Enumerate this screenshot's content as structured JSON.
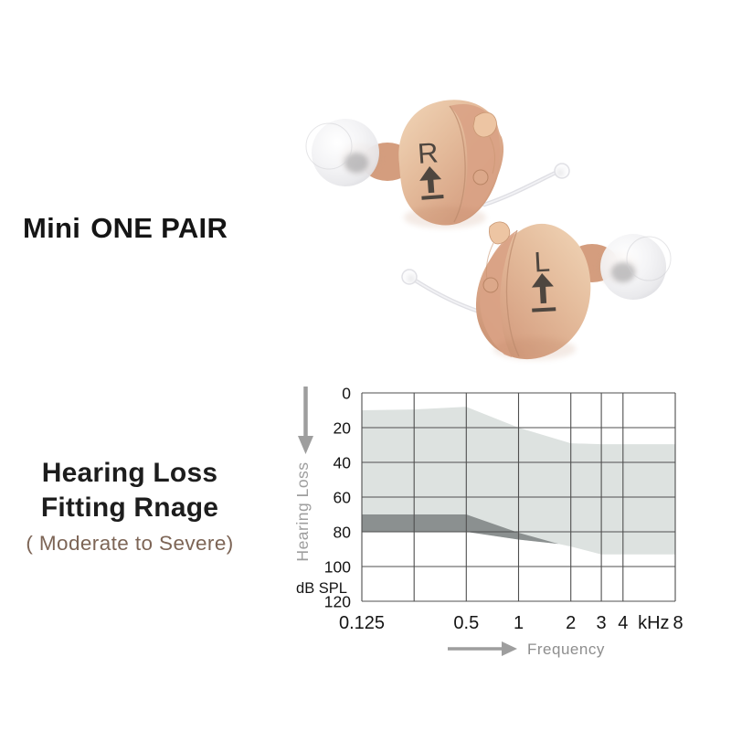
{
  "product": {
    "title_bold": "Mini",
    "title_rest": "ONE PAIR",
    "right_aid_label": "R",
    "left_aid_label": "L",
    "body_color": "#d7a284",
    "body_light": "#eccfb0",
    "marking_color": "#4e463f"
  },
  "fitting": {
    "line1": "Hearing Loss",
    "line2": "Fitting Rnage",
    "subtitle": "( Moderate to Severe)",
    "subtitle_color": "#7d6556"
  },
  "chart_data": {
    "type": "area",
    "title": "Hearing Loss Fitting Range",
    "x_axis": {
      "label": "Frequency",
      "scale": "log",
      "range": [
        0.125,
        8
      ],
      "gridlines": [
        0.125,
        0.25,
        0.5,
        1,
        2,
        3,
        4,
        8
      ],
      "tick_labels": [
        {
          "f": 0.125,
          "label": "0.125"
        },
        {
          "f": 0.5,
          "label": "0.5"
        },
        {
          "f": 1,
          "label": "1"
        },
        {
          "f": 2,
          "label": "2"
        },
        {
          "f": 3,
          "label": "3"
        },
        {
          "f": 4,
          "label": "4"
        },
        {
          "f": 6.0,
          "label": "kHz"
        },
        {
          "f": 8.3,
          "label": "8"
        }
      ]
    },
    "y_axis": {
      "label": "Hearing Loss",
      "unit": "dB SPL",
      "range": [
        0,
        120
      ],
      "ticks": [
        0,
        20,
        40,
        60,
        80,
        100,
        120
      ],
      "direction": "down"
    },
    "series": [
      {
        "name": "fitting-range",
        "color": "#dde2e0",
        "upper": [
          [
            0.125,
            10
          ],
          [
            0.25,
            9.5
          ],
          [
            0.5,
            8
          ],
          [
            1,
            20
          ],
          [
            2,
            29
          ],
          [
            3,
            29.5
          ],
          [
            8,
            29.5
          ]
        ],
        "lower": [
          [
            0.125,
            80
          ],
          [
            0.5,
            80
          ],
          [
            1,
            84.5
          ],
          [
            1.7,
            87
          ],
          [
            2,
            88.5
          ],
          [
            3,
            93
          ],
          [
            8,
            93
          ]
        ]
      },
      {
        "name": "severe-band",
        "color": "#8b9090",
        "upper": [
          [
            0.125,
            70
          ],
          [
            0.5,
            70
          ],
          [
            1,
            80.5
          ],
          [
            1.7,
            87
          ]
        ],
        "lower": [
          [
            0.125,
            80
          ],
          [
            0.5,
            80
          ],
          [
            1,
            84.5
          ],
          [
            1.7,
            87
          ]
        ]
      }
    ],
    "grid_color": "#4f4f4f",
    "tick_color": "#141414",
    "muted_color": "#9e9e9e"
  }
}
